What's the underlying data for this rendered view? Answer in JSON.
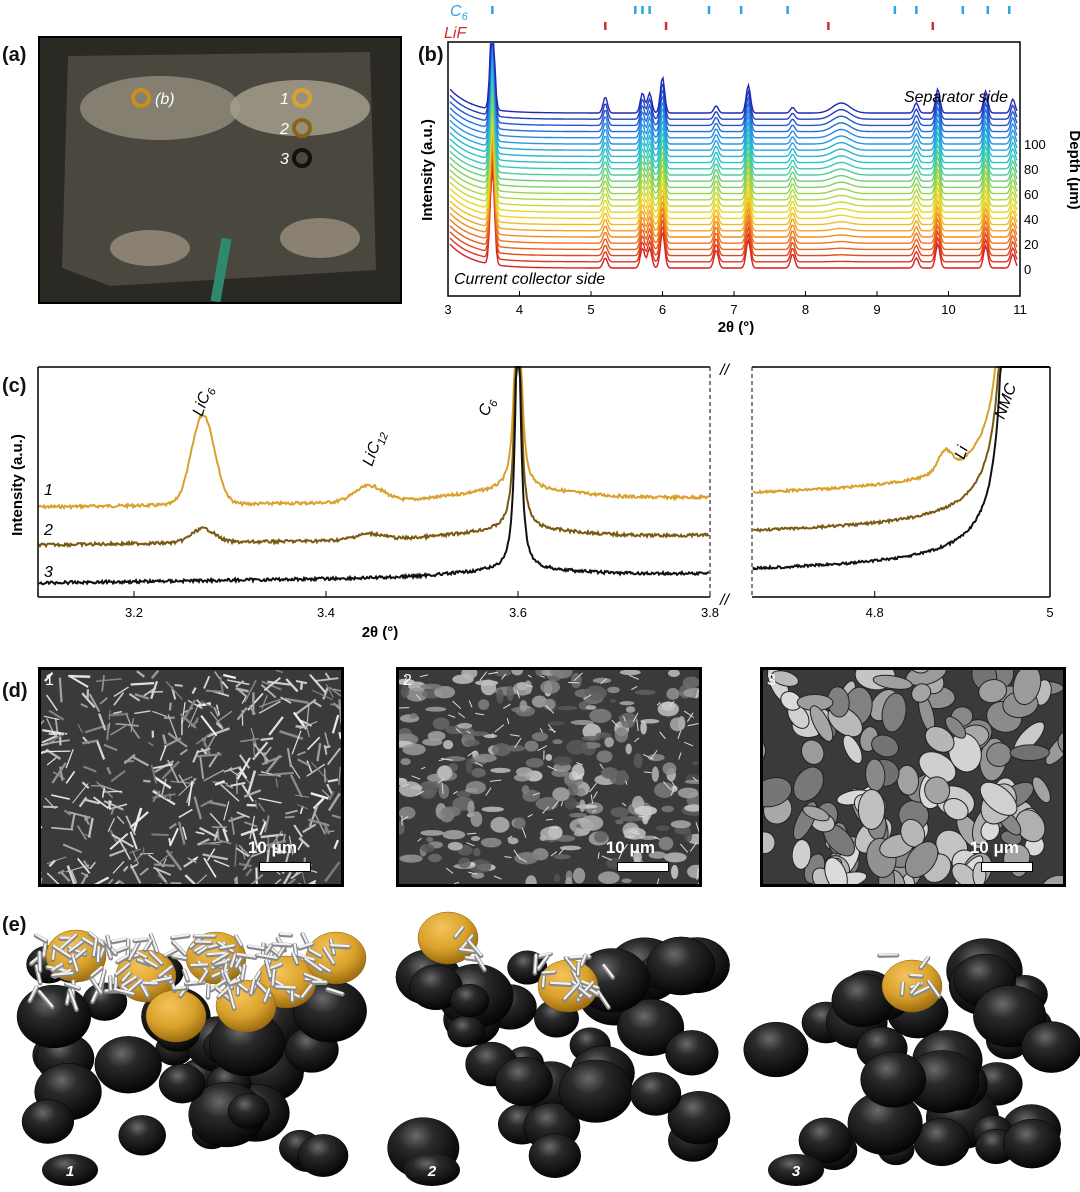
{
  "labels": {
    "a": "(a)",
    "b": "(b)",
    "c": "(c)",
    "d": "(d)",
    "e": "(e)"
  },
  "panel_a": {
    "spots": [
      {
        "label": "(b)",
        "color": "#c8901a"
      },
      {
        "label": "1",
        "color": "#d9a12b"
      },
      {
        "label": "2",
        "color": "#8a6518"
      },
      {
        "label": "3",
        "color": "#111111"
      }
    ]
  },
  "colors": {
    "gold": "#d9a12b",
    "brown": "#7a5a12",
    "black": "#111111",
    "c6_tick": "#2aa7d8",
    "lif_tick": "#d62a2a"
  },
  "chart_data": [
    {
      "type": "line",
      "panel": "b",
      "xlabel": "2θ (°)",
      "ylabel": "Intensity (a.u.)",
      "y2label": "Depth (μm)",
      "xlim": [
        3,
        11
      ],
      "xticks": [
        3,
        4,
        5,
        6,
        7,
        8,
        9,
        10,
        11
      ],
      "depth_ticks": [
        0,
        20,
        40,
        60,
        80,
        100
      ],
      "annotations": {
        "top": "Separator side",
        "bottom": "Current collector side"
      },
      "reference_markers": [
        {
          "name": "C6",
          "color": "#2aa7d8",
          "positions": [
            3.62,
            5.62,
            5.72,
            5.82,
            6.65,
            7.1,
            7.75,
            9.25,
            9.55,
            10.2,
            10.55,
            10.85
          ]
        },
        {
          "name": "LiF",
          "color": "#d62a2a",
          "positions": [
            5.2,
            6.05,
            8.32,
            9.78
          ]
        }
      ],
      "peaks": [
        3.62,
        5.2,
        5.72,
        5.82,
        6.0,
        6.75,
        7.2,
        7.82,
        8.5,
        9.55,
        9.85,
        10.52,
        10.9
      ]
    },
    {
      "type": "line",
      "panel": "c",
      "xlabel": "2θ (°)",
      "ylabel": "Intensity (a.u.)",
      "xlim_left": [
        3.1,
        3.8
      ],
      "xlim_right": [
        4.66,
        5.0
      ],
      "xticks_left": [
        3.2,
        3.4,
        3.6,
        3.8
      ],
      "xticks_right": [
        4.8,
        5
      ],
      "peak_labels": [
        "LiC6",
        "LiC12",
        "C6",
        "Li",
        "NMC"
      ],
      "series": [
        {
          "name": "1",
          "color": "#d9a12b"
        },
        {
          "name": "2",
          "color": "#7a5a12"
        },
        {
          "name": "3",
          "color": "#111111"
        }
      ]
    }
  ],
  "panel_d": {
    "images": [
      {
        "num": "1"
      },
      {
        "num": "2"
      },
      {
        "num": "3"
      }
    ],
    "scale": "10 μm"
  },
  "panel_e": {
    "labels": [
      "1",
      "2",
      "3"
    ]
  }
}
